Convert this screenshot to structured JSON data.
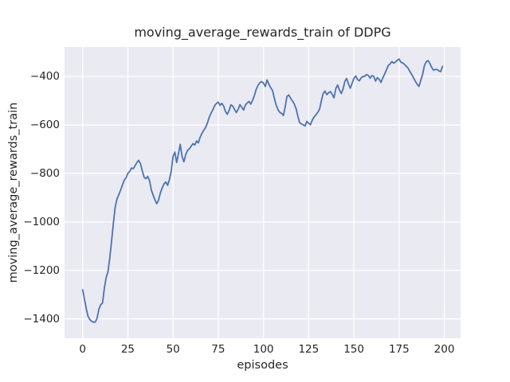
{
  "figure": {
    "title": "moving_average_rewards_train of DDPG",
    "xlabel": "episodes",
    "ylabel": "moving_average_rewards_train"
  },
  "chart_data": {
    "type": "line",
    "title": "moving_average_rewards_train of DDPG",
    "xlabel": "episodes",
    "ylabel": "moving_average_rewards_train",
    "xlim": [
      -10,
      209
    ],
    "ylim": [
      -1480,
      -278
    ],
    "xticks": [
      0,
      25,
      50,
      75,
      100,
      125,
      150,
      175,
      200
    ],
    "yticks": [
      -400,
      -600,
      -800,
      -1000,
      -1200,
      -1400
    ],
    "grid": true,
    "legend": false,
    "style": "seaborn-darkgrid",
    "colors": {
      "line": "#4c72b0",
      "plot_background": "#eaeaf2",
      "grid": "#ffffff",
      "text": "#262626",
      "figure_background": "#ffffff"
    },
    "series": [
      {
        "name": "moving_average_rewards_train",
        "points": [
          [
            0,
            -1280
          ],
          [
            1,
            -1318
          ],
          [
            2,
            -1357
          ],
          [
            3,
            -1390
          ],
          [
            4,
            -1403
          ],
          [
            5,
            -1410
          ],
          [
            6,
            -1414
          ],
          [
            7,
            -1413
          ],
          [
            8,
            -1398
          ],
          [
            9,
            -1360
          ],
          [
            10,
            -1342
          ],
          [
            11,
            -1334
          ],
          [
            12,
            -1275
          ],
          [
            13,
            -1230
          ],
          [
            14,
            -1205
          ],
          [
            15,
            -1150
          ],
          [
            16,
            -1080
          ],
          [
            17,
            -1005
          ],
          [
            18,
            -940
          ],
          [
            19,
            -905
          ],
          [
            20,
            -888
          ],
          [
            21,
            -868
          ],
          [
            22,
            -848
          ],
          [
            23,
            -828
          ],
          [
            24,
            -818
          ],
          [
            25,
            -800
          ],
          [
            26,
            -792
          ],
          [
            27,
            -778
          ],
          [
            28,
            -780
          ],
          [
            29,
            -768
          ],
          [
            30,
            -755
          ],
          [
            31,
            -746
          ],
          [
            32,
            -760
          ],
          [
            33,
            -790
          ],
          [
            34,
            -816
          ],
          [
            35,
            -822
          ],
          [
            36,
            -812
          ],
          [
            37,
            -830
          ],
          [
            38,
            -868
          ],
          [
            39,
            -890
          ],
          [
            40,
            -910
          ],
          [
            41,
            -925
          ],
          [
            42,
            -910
          ],
          [
            43,
            -880
          ],
          [
            44,
            -860
          ],
          [
            45,
            -843
          ],
          [
            46,
            -835
          ],
          [
            47,
            -849
          ],
          [
            48,
            -825
          ],
          [
            49,
            -790
          ],
          [
            50,
            -730
          ],
          [
            51,
            -712
          ],
          [
            52,
            -755
          ],
          [
            53,
            -718
          ],
          [
            54,
            -680
          ],
          [
            55,
            -730
          ],
          [
            56,
            -752
          ],
          [
            57,
            -722
          ],
          [
            58,
            -705
          ],
          [
            59,
            -698
          ],
          [
            60,
            -688
          ],
          [
            61,
            -677
          ],
          [
            62,
            -683
          ],
          [
            63,
            -666
          ],
          [
            64,
            -674
          ],
          [
            65,
            -650
          ],
          [
            66,
            -634
          ],
          [
            67,
            -622
          ],
          [
            68,
            -610
          ],
          [
            69,
            -592
          ],
          [
            70,
            -568
          ],
          [
            71,
            -552
          ],
          [
            72,
            -537
          ],
          [
            73,
            -520
          ],
          [
            74,
            -511
          ],
          [
            75,
            -506
          ],
          [
            76,
            -519
          ],
          [
            77,
            -511
          ],
          [
            78,
            -522
          ],
          [
            79,
            -545
          ],
          [
            80,
            -556
          ],
          [
            81,
            -540
          ],
          [
            82,
            -517
          ],
          [
            83,
            -522
          ],
          [
            84,
            -535
          ],
          [
            85,
            -549
          ],
          [
            86,
            -535
          ],
          [
            87,
            -516
          ],
          [
            88,
            -527
          ],
          [
            89,
            -538
          ],
          [
            90,
            -518
          ],
          [
            91,
            -509
          ],
          [
            92,
            -503
          ],
          [
            93,
            -514
          ],
          [
            94,
            -498
          ],
          [
            95,
            -478
          ],
          [
            96,
            -452
          ],
          [
            97,
            -437
          ],
          [
            98,
            -425
          ],
          [
            99,
            -421
          ],
          [
            100,
            -427
          ],
          [
            101,
            -441
          ],
          [
            102,
            -414
          ],
          [
            103,
            -432
          ],
          [
            104,
            -446
          ],
          [
            105,
            -458
          ],
          [
            106,
            -490
          ],
          [
            107,
            -517
          ],
          [
            108,
            -536
          ],
          [
            109,
            -548
          ],
          [
            110,
            -552
          ],
          [
            111,
            -561
          ],
          [
            112,
            -525
          ],
          [
            113,
            -482
          ],
          [
            114,
            -476
          ],
          [
            115,
            -490
          ],
          [
            116,
            -500
          ],
          [
            117,
            -513
          ],
          [
            118,
            -532
          ],
          [
            119,
            -564
          ],
          [
            120,
            -590
          ],
          [
            121,
            -596
          ],
          [
            122,
            -600
          ],
          [
            123,
            -604
          ],
          [
            124,
            -585
          ],
          [
            125,
            -593
          ],
          [
            126,
            -599
          ],
          [
            127,
            -580
          ],
          [
            128,
            -567
          ],
          [
            129,
            -558
          ],
          [
            130,
            -548
          ],
          [
            131,
            -535
          ],
          [
            132,
            -500
          ],
          [
            133,
            -470
          ],
          [
            134,
            -460
          ],
          [
            135,
            -475
          ],
          [
            136,
            -467
          ],
          [
            137,
            -462
          ],
          [
            138,
            -474
          ],
          [
            139,
            -488
          ],
          [
            140,
            -450
          ],
          [
            141,
            -435
          ],
          [
            142,
            -455
          ],
          [
            143,
            -470
          ],
          [
            144,
            -452
          ],
          [
            145,
            -420
          ],
          [
            146,
            -408
          ],
          [
            147,
            -430
          ],
          [
            148,
            -448
          ],
          [
            149,
            -428
          ],
          [
            150,
            -408
          ],
          [
            151,
            -398
          ],
          [
            152,
            -412
          ],
          [
            153,
            -418
          ],
          [
            154,
            -405
          ],
          [
            155,
            -400
          ],
          [
            156,
            -399
          ],
          [
            157,
            -392
          ],
          [
            158,
            -396
          ],
          [
            159,
            -407
          ],
          [
            160,
            -396
          ],
          [
            161,
            -400
          ],
          [
            162,
            -419
          ],
          [
            163,
            -404
          ],
          [
            164,
            -412
          ],
          [
            165,
            -424
          ],
          [
            166,
            -405
          ],
          [
            167,
            -390
          ],
          [
            168,
            -372
          ],
          [
            169,
            -355
          ],
          [
            170,
            -348
          ],
          [
            171,
            -338
          ],
          [
            172,
            -345
          ],
          [
            173,
            -340
          ],
          [
            174,
            -333
          ],
          [
            175,
            -328
          ],
          [
            176,
            -341
          ],
          [
            177,
            -344
          ],
          [
            178,
            -350
          ],
          [
            179,
            -358
          ],
          [
            180,
            -366
          ],
          [
            181,
            -380
          ],
          [
            182,
            -392
          ],
          [
            183,
            -406
          ],
          [
            184,
            -420
          ],
          [
            185,
            -432
          ],
          [
            186,
            -441
          ],
          [
            187,
            -415
          ],
          [
            188,
            -392
          ],
          [
            189,
            -355
          ],
          [
            190,
            -339
          ],
          [
            191,
            -334
          ],
          [
            192,
            -346
          ],
          [
            193,
            -362
          ],
          [
            194,
            -374
          ],
          [
            195,
            -371
          ],
          [
            196,
            -371
          ],
          [
            197,
            -377
          ],
          [
            198,
            -380
          ],
          [
            199,
            -358
          ]
        ]
      }
    ]
  }
}
